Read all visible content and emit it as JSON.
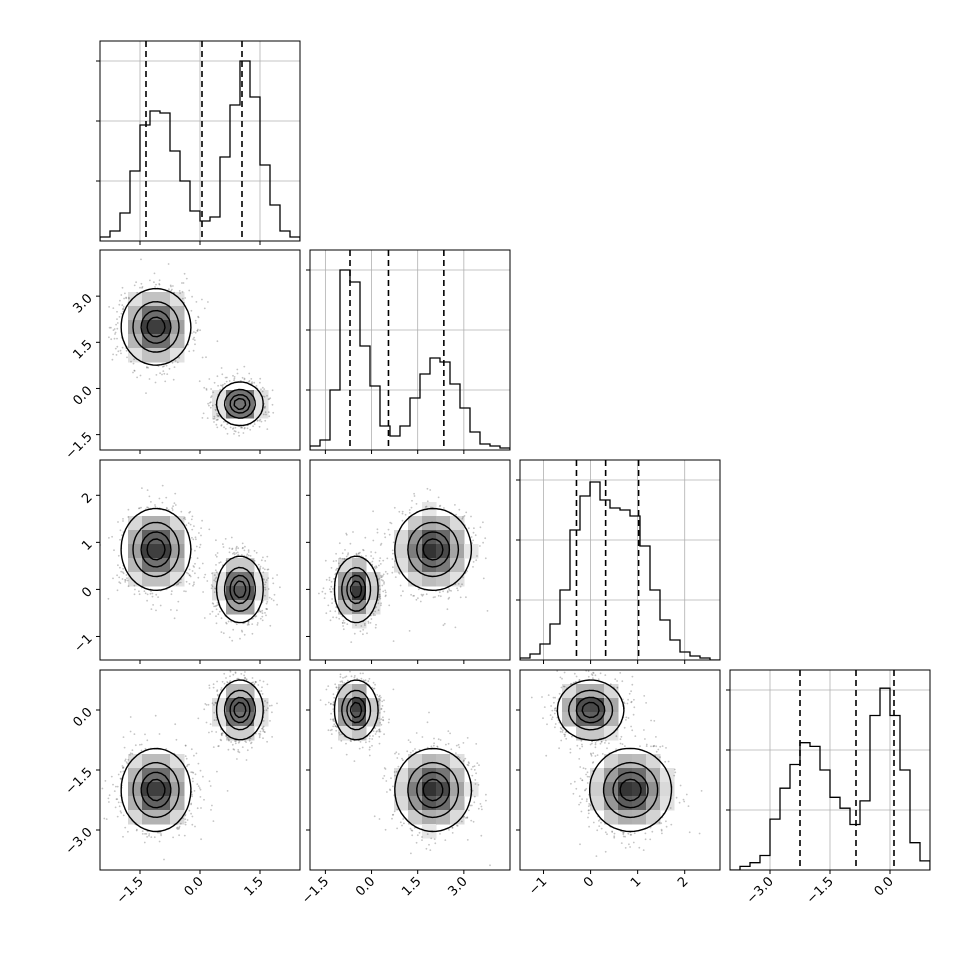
{
  "chart_data": {
    "type": "corner",
    "title": "",
    "n_params": 4,
    "parameters": [
      {
        "index": 0,
        "label": "",
        "range": [
          -2.5,
          2.5
        ],
        "ticks": [
          -1.5,
          0.0,
          1.5
        ],
        "tick_labels": [
          "−1.5",
          "0.0",
          "1.5"
        ],
        "quantiles": [
          -1.35,
          0.05,
          1.05
        ],
        "hist_bins": [
          -2.5,
          -2.25,
          -2.0,
          -1.75,
          -1.5,
          -1.25,
          -1.0,
          -0.75,
          -0.5,
          -0.25,
          0.0,
          0.25,
          0.5,
          0.75,
          1.0,
          1.25,
          1.5,
          1.75,
          2.0,
          2.25,
          2.5
        ],
        "hist_counts": [
          2,
          5,
          14,
          35,
          58,
          65,
          64,
          45,
          30,
          15,
          10,
          12,
          42,
          68,
          90,
          72,
          38,
          18,
          5,
          2
        ],
        "hist_ymax": 100
      },
      {
        "index": 1,
        "label": "",
        "range": [
          -2.0,
          4.5
        ],
        "ticks": [
          -1.5,
          0.0,
          1.5,
          3.0
        ],
        "tick_labels": [
          "−1.5",
          "0.0",
          "1.5",
          "3.0"
        ],
        "quantiles": [
          -0.7,
          0.55,
          2.35
        ],
        "hist_bins": [
          -2.0,
          -1.675,
          -1.35,
          -1.025,
          -0.7,
          -0.375,
          -0.05,
          0.275,
          0.6,
          0.925,
          1.25,
          1.575,
          1.9,
          2.225,
          2.55,
          2.875,
          3.2,
          3.525,
          3.85,
          4.175,
          4.5
        ],
        "hist_counts": [
          2,
          5,
          30,
          90,
          84,
          52,
          32,
          12,
          7,
          12,
          26,
          38,
          46,
          44,
          33,
          21,
          9,
          3,
          2,
          1
        ],
        "hist_ymax": 100
      },
      {
        "index": 2,
        "label": "",
        "range": [
          -1.5,
          2.75
        ],
        "ticks": [
          -1,
          0,
          1,
          2
        ],
        "tick_labels": [
          "−1",
          "0",
          "1",
          "2"
        ],
        "quantiles": [
          -0.3,
          0.32,
          1.02
        ],
        "hist_bins": [
          -1.5,
          -1.2875,
          -1.075,
          -0.8625,
          -0.65,
          -0.4375,
          -0.225,
          -0.0125,
          0.2,
          0.4125,
          0.625,
          0.8375,
          1.05,
          1.2625,
          1.475,
          1.6875,
          1.9,
          2.1125,
          2.325,
          2.5375,
          2.75
        ],
        "hist_counts": [
          1,
          3,
          8,
          18,
          35,
          65,
          82,
          89,
          80,
          76,
          75,
          72,
          57,
          35,
          20,
          10,
          4,
          2,
          1,
          0
        ],
        "hist_ymax": 100
      },
      {
        "index": 3,
        "label": "",
        "range": [
          -4.0,
          1.0
        ],
        "ticks": [
          -3.0,
          -1.5,
          0.0
        ],
        "tick_labels": [
          "−3.0",
          "−1.5",
          "0.0"
        ],
        "quantiles": [
          -2.25,
          -0.85,
          0.1
        ],
        "hist_bins": [
          -4.0,
          -3.75,
          -3.5,
          -3.25,
          -3.0,
          -2.75,
          -2.5,
          -2.25,
          -2.0,
          -1.75,
          -1.5,
          -1.25,
          -1.0,
          -0.75,
          -0.5,
          -0.25,
          0.0,
          0.25,
          0.5,
          0.75,
          1.0
        ],
        "hist_counts": [
          0,
          2,
          4,
          8,
          28,
          45,
          58,
          70,
          68,
          55,
          40,
          34,
          25,
          38,
          85,
          100,
          85,
          55,
          15,
          5
        ],
        "hist_ymax": 110
      }
    ],
    "modes": [
      {
        "weight": 0.5,
        "mean": [
          -1.1,
          2.0,
          0.85,
          -2.0
        ],
        "std": [
          0.42,
          0.6,
          0.42,
          0.5
        ]
      },
      {
        "weight": 0.5,
        "mean": [
          1.0,
          -0.5,
          0.0,
          0.0
        ],
        "std": [
          0.28,
          0.34,
          0.34,
          0.36
        ]
      }
    ],
    "contour_levels": [
      0.118,
      0.393,
      0.675,
      0.865
    ],
    "grid": true,
    "colors": {
      "line": "#000000",
      "grid": "#b0b0b0",
      "points": "#555555",
      "frame": "#000000"
    }
  }
}
